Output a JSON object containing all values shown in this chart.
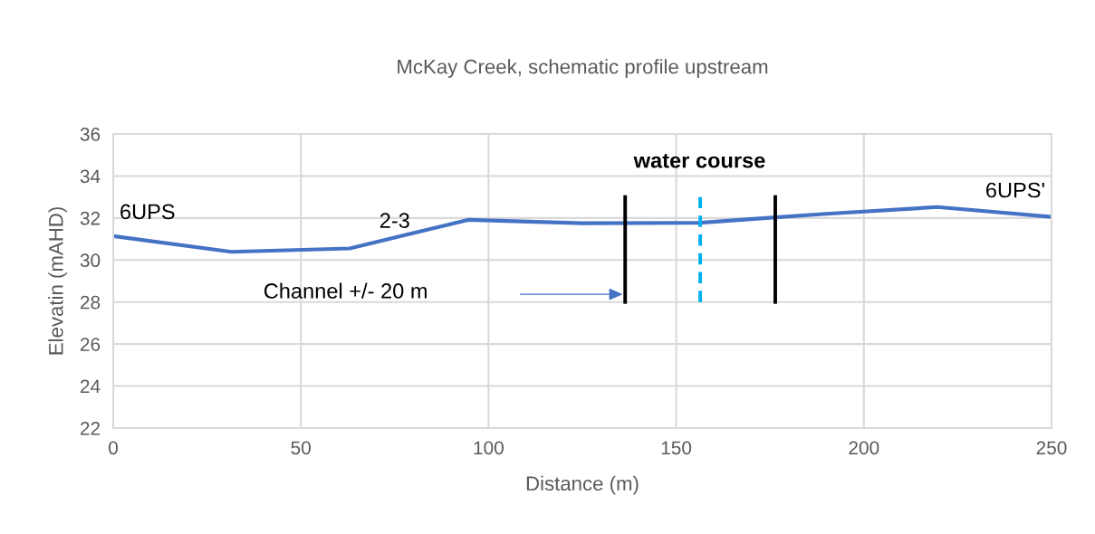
{
  "chart_data": {
    "type": "line",
    "title": "McKay Creek, schematic profile upstream",
    "xlabel": "Distance (m)",
    "ylabel": "Elevatin (mAHD)",
    "xlim": [
      0,
      250
    ],
    "xticks": [
      0,
      50,
      100,
      150,
      200,
      250
    ],
    "ylim": [
      22,
      36
    ],
    "yticks": [
      22,
      24,
      26,
      28,
      30,
      32,
      34,
      36
    ],
    "grid": true,
    "legend": false,
    "marker": "none",
    "series": [
      {
        "color": "#4472c4",
        "line_style": "solid",
        "x": [
          0,
          31.5,
          63,
          94.5,
          125,
          156.4,
          176.5,
          190,
          219.6,
          250
        ],
        "values": [
          31.14,
          30.39,
          30.55,
          31.91,
          31.75,
          31.77,
          32.03,
          32.2,
          32.52,
          32.05
        ]
      },
      {
        "color": "#000000",
        "line_style": "solid",
        "x": [
          136.4,
          136.4
        ],
        "values": [
          28,
          33
        ]
      },
      {
        "color": "#00b0f0",
        "line_style": "dashed",
        "x": [
          156.4,
          156.4
        ],
        "values": [
          28,
          33
        ]
      },
      {
        "color": "#000000",
        "line_style": "solid",
        "x": [
          176.4,
          176.4
        ],
        "values": [
          28,
          33
        ]
      }
    ],
    "annotations": [
      {
        "text": "6UPS",
        "x": 0,
        "y": 31.14
      },
      {
        "text": "2-3",
        "x": 75,
        "y": 31.2
      },
      {
        "text": "6UPS'",
        "x": 250,
        "y": 32.05
      },
      "water course",
      "Channel +/- 20 m"
    ]
  }
}
